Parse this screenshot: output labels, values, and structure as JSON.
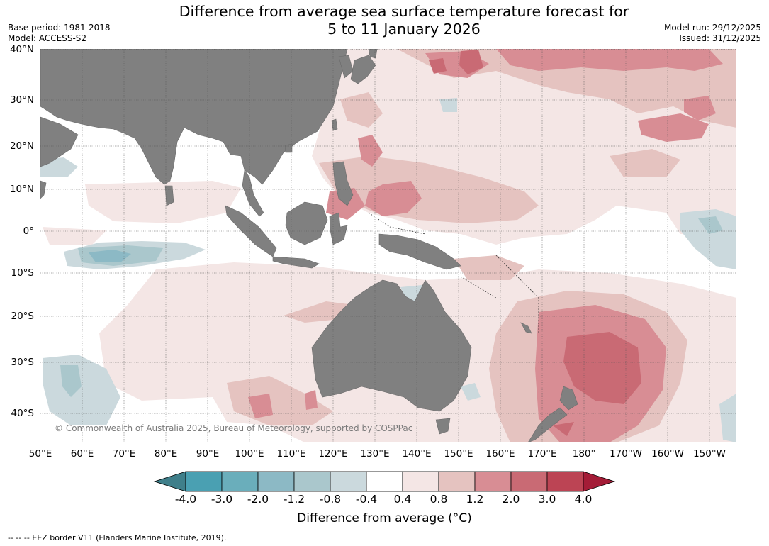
{
  "title": {
    "line1": "Difference from average sea surface temperature forecast for",
    "line2": "5 to 11 January 2026"
  },
  "meta": {
    "base_period": "Base period: 1981-2018",
    "model": "Model: ACCESS-S2",
    "model_run": "Model run: 29/12/2025",
    "issued": "Issued: 31/12/2025"
  },
  "lat_labels": [
    "40°N",
    "30°N",
    "20°N",
    "10°N",
    "0°",
    "10°S",
    "20°S",
    "30°S",
    "40°S"
  ],
  "lon_labels": [
    "50°E",
    "60°E",
    "70°E",
    "80°E",
    "90°E",
    "100°E",
    "110°E",
    "120°E",
    "130°E",
    "140°E",
    "150°E",
    "160°E",
    "170°E",
    "180°",
    "170°W",
    "160°W",
    "150°W"
  ],
  "copyright": "© Commonwealth of Australia 2025, Bureau of Meteorology, supported by COSPPac",
  "colorbar": {
    "ticks": [
      "-4.0",
      "-3.0",
      "-2.0",
      "-1.2",
      "-0.8",
      "-0.4",
      "0.4",
      "0.8",
      "1.2",
      "2.0",
      "3.0",
      "4.0"
    ],
    "label": "Difference from average (°C)",
    "colors": [
      "#3f7f8a",
      "#4aa0b2",
      "#6aaebb",
      "#8cb9c5",
      "#aac7cc",
      "#cbd9dd",
      "#ffffff",
      "#f4e6e5",
      "#e5c3c0",
      "#d88d94",
      "#c96a74",
      "#bc4454",
      "#a41c37"
    ]
  },
  "legend_note": "--  --  -- EEZ border V11 (Flanders Marine Institute, 2019).",
  "colors": {
    "land": "#808080",
    "grid": "#555555"
  }
}
